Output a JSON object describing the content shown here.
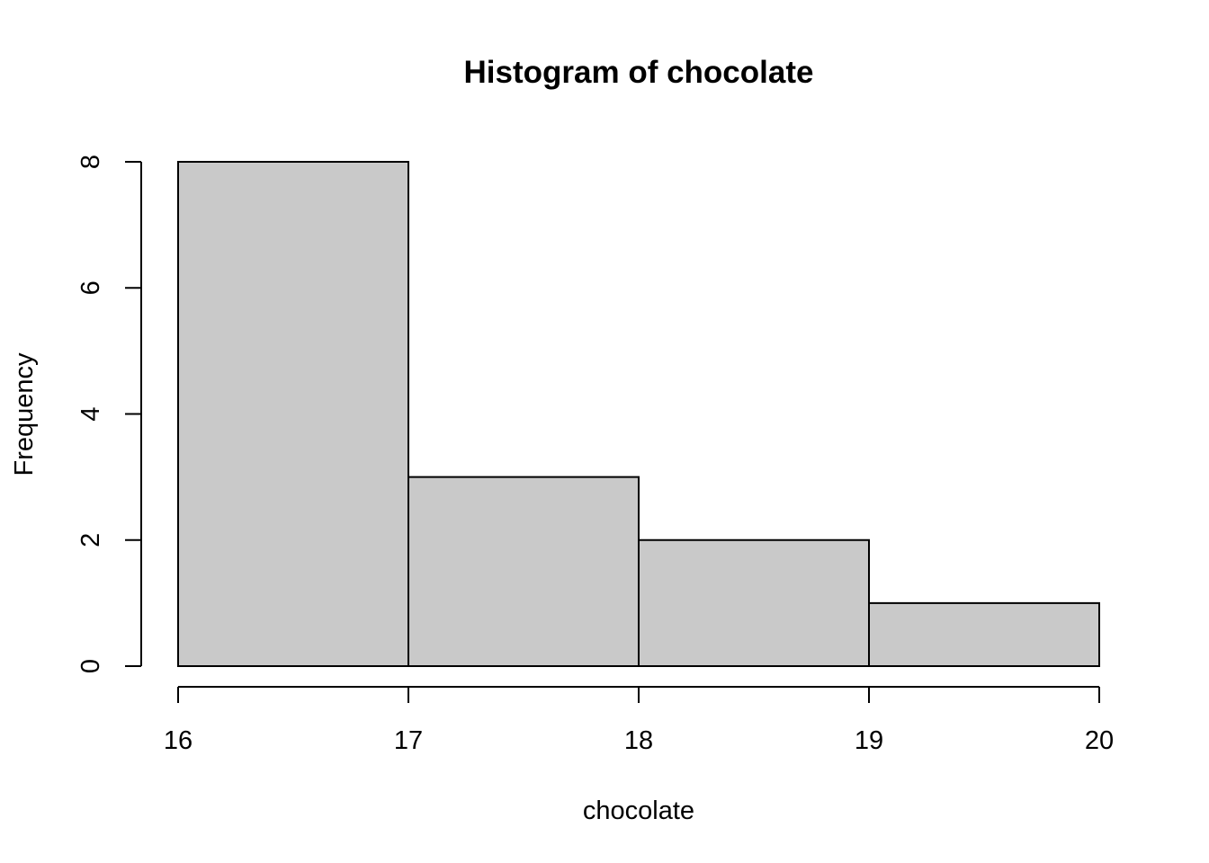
{
  "chart_data": {
    "type": "bar",
    "title": "Histogram of chocolate",
    "xlabel": "chocolate",
    "ylabel": "Frequency",
    "bins": [
      {
        "start": 16,
        "end": 17,
        "count": 8
      },
      {
        "start": 17,
        "end": 18,
        "count": 3
      },
      {
        "start": 18,
        "end": 19,
        "count": 2
      },
      {
        "start": 19,
        "end": 20,
        "count": 1
      }
    ],
    "x_ticks": [
      16,
      17,
      18,
      19,
      20
    ],
    "y_ticks": [
      0,
      2,
      4,
      6,
      8
    ],
    "xlim": [
      16,
      20
    ],
    "ylim": [
      0,
      8
    ],
    "grid": false,
    "legend": "none",
    "bar_fill": "#c9c9c9",
    "bar_stroke": "#000000"
  }
}
